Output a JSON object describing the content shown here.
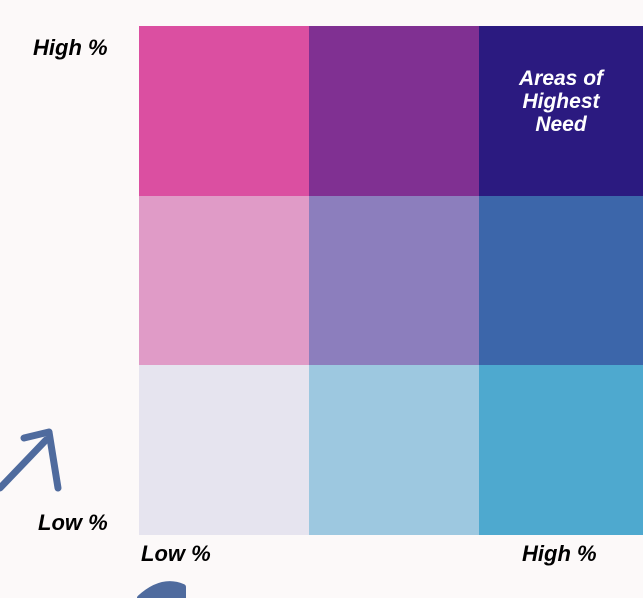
{
  "chart_data": {
    "type": "heatmap",
    "x_tick_labels": [
      "Low %",
      "High %"
    ],
    "y_tick_labels": [
      "Low %",
      "High %"
    ],
    "rows": [
      {
        "level": "high",
        "colors": [
          "#db4fa1",
          "#803092",
          "#2b1a80"
        ]
      },
      {
        "level": "medium",
        "colors": [
          "#e09bc7",
          "#8c7ebd",
          "#3c66aa"
        ]
      },
      {
        "level": "low",
        "colors": [
          "#e6e4ef",
          "#9dc8e0",
          "#4ea9cf"
        ]
      }
    ],
    "annotations": [
      {
        "row": 0,
        "col": 2,
        "text": "Areas of\nHighest\nNeed"
      }
    ],
    "arrow_color": "#4f6b9e"
  }
}
